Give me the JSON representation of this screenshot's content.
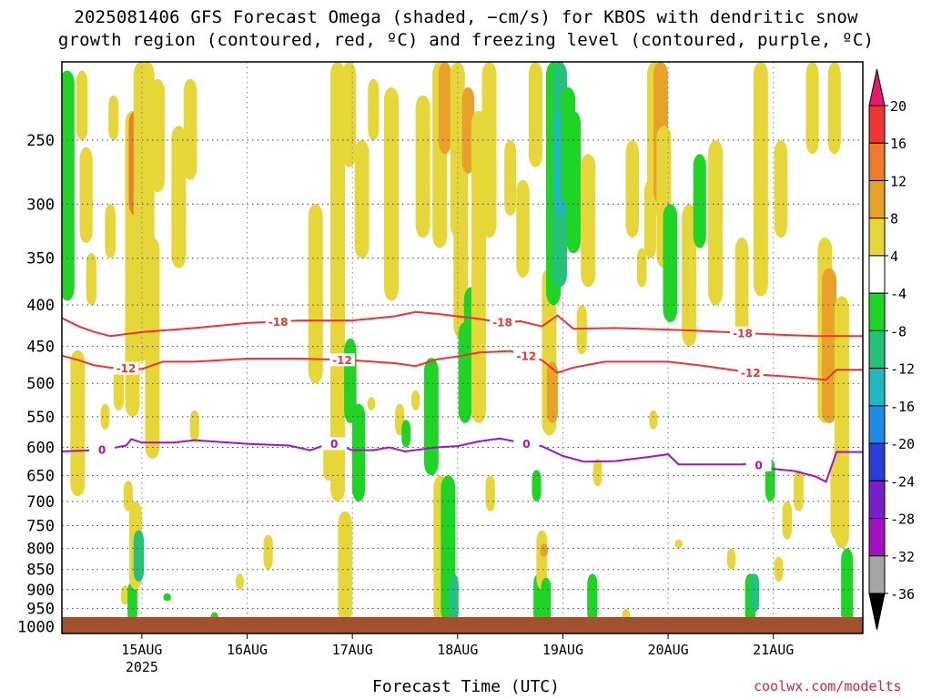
{
  "title_line1": "2025081406 GFS Forecast Omega (shaded, −cm/s) for KBOS with dendritic snow",
  "title_line2": "growth region (contoured, red, ºC) and freezing level (contoured, purple, ºC)",
  "credit": "coolwx.com/modelts",
  "chart_data": {
    "type": "heatmap",
    "title": "2025081406 GFS Forecast Omega (shaded, −cm/s) for KBOS with dendritic snow growth region (contoured, red, ºC) and freezing level (contoured, purple, ºC)",
    "xlabel": "Forecast Time (UTC)",
    "ylabel": "",
    "x_ticks": [
      {
        "label": "15AUG",
        "sublabel": "2025",
        "day": 15
      },
      {
        "label": "16AUG",
        "sublabel": "",
        "day": 16
      },
      {
        "label": "17AUG",
        "sublabel": "",
        "day": 17
      },
      {
        "label": "18AUG",
        "sublabel": "",
        "day": 18
      },
      {
        "label": "19AUG",
        "sublabel": "",
        "day": 19
      },
      {
        "label": "20AUG",
        "sublabel": "",
        "day": 20
      },
      {
        "label": "21AUG",
        "sublabel": "",
        "day": 21
      }
    ],
    "xlim": [
      14.24,
      21.85
    ],
    "y_ticks": [
      250,
      300,
      350,
      400,
      450,
      500,
      550,
      600,
      650,
      700,
      750,
      800,
      850,
      900,
      950,
      1000
    ],
    "y_unit": "hPa",
    "ylim": [
      1020,
      200
    ],
    "colorbar": {
      "labels": [
        "20",
        "16",
        "12",
        "8",
        "4",
        "-4",
        "-8",
        "-12",
        "-16",
        "-20",
        "-24",
        "-28",
        "-32",
        "-36"
      ],
      "bins": [
        {
          "from": 20,
          "to": null,
          "color": "#e8176f"
        },
        {
          "from": 16,
          "to": 20,
          "color": "#f03535"
        },
        {
          "from": 12,
          "to": 16,
          "color": "#ee7b2a"
        },
        {
          "from": 8,
          "to": 12,
          "color": "#e8a22a"
        },
        {
          "from": 4,
          "to": 8,
          "color": "#e6d638"
        },
        {
          "from": -4,
          "to": 4,
          "color": "#ffffff"
        },
        {
          "from": -8,
          "to": -4,
          "color": "#1ed424"
        },
        {
          "from": -12,
          "to": -8,
          "color": "#22c27a"
        },
        {
          "from": -16,
          "to": -12,
          "color": "#1fb7c0"
        },
        {
          "from": -20,
          "to": -16,
          "color": "#1f8be8"
        },
        {
          "from": -24,
          "to": -20,
          "color": "#2b3dd9"
        },
        {
          "from": -28,
          "to": -24,
          "color": "#7a1fd0"
        },
        {
          "from": -32,
          "to": -28,
          "color": "#a012c4"
        },
        {
          "from": -36,
          "to": -32,
          "color": "#a5a5a5"
        },
        {
          "from": null,
          "to": -36,
          "color": "#000000"
        }
      ]
    },
    "omega_regions": [
      {
        "day": 14.29,
        "pres": [
          205,
          395
        ],
        "value": -5
      },
      {
        "day": 14.39,
        "pres": [
          455,
          690
        ],
        "value": 5
      },
      {
        "day": 14.43,
        "pres": [
          205,
          250
        ],
        "value": 5
      },
      {
        "day": 14.47,
        "pres": [
          255,
          335
        ],
        "value": 6
      },
      {
        "day": 14.52,
        "pres": [
          345,
          400
        ],
        "value": 5
      },
      {
        "day": 14.65,
        "pres": [
          530,
          570
        ],
        "value": 5
      },
      {
        "day": 14.7,
        "pres": [
          300,
          350
        ],
        "value": 5
      },
      {
        "day": 14.73,
        "pres": [
          220,
          250
        ],
        "value": 5
      },
      {
        "day": 14.78,
        "pres": [
          470,
          540
        ],
        "value": 5
      },
      {
        "day": 14.84,
        "pres": [
          890,
          940
        ],
        "value": 5
      },
      {
        "day": 14.87,
        "pres": [
          660,
          720
        ],
        "value": 5
      },
      {
        "day": 14.91,
        "pres": [
          880,
          990
        ],
        "value": -6
      },
      {
        "day": 14.91,
        "pres": [
          230,
          550
        ],
        "value": 6
      },
      {
        "day": 14.94,
        "pres": [
          230,
          310
        ],
        "value": 14
      },
      {
        "day": 14.94,
        "pres": [
          700,
          900
        ],
        "value": 5
      },
      {
        "day": 14.97,
        "pres": [
          760,
          880
        ],
        "value": -12
      },
      {
        "day": 14.99,
        "pres": [
          200,
          470
        ],
        "value": 5
      },
      {
        "day": 15.05,
        "pres": [
          200,
          420
        ],
        "value": 5
      },
      {
        "day": 15.1,
        "pres": [
          330,
          620
        ],
        "value": 5
      },
      {
        "day": 15.15,
        "pres": [
          210,
          290
        ],
        "value": 5
      },
      {
        "day": 15.24,
        "pres": [
          910,
          930
        ],
        "value": -5
      },
      {
        "day": 15.35,
        "pres": [
          240,
          360
        ],
        "value": 5
      },
      {
        "day": 15.46,
        "pres": [
          210,
          280
        ],
        "value": 5
      },
      {
        "day": 15.5,
        "pres": [
          540,
          590
        ],
        "value": 5
      },
      {
        "day": 15.69,
        "pres": [
          960,
          995
        ],
        "value": -5
      },
      {
        "day": 15.93,
        "pres": [
          860,
          900
        ],
        "value": 5
      },
      {
        "day": 16.2,
        "pres": [
          770,
          850
        ],
        "value": 5
      },
      {
        "day": 16.65,
        "pres": [
          300,
          500
        ],
        "value": 5
      },
      {
        "day": 16.77,
        "pres": [
          590,
          660
        ],
        "value": 5
      },
      {
        "day": 16.86,
        "pres": [
          200,
          700
        ],
        "value": 5
      },
      {
        "day": 16.93,
        "pres": [
          720,
          990
        ],
        "value": 5
      },
      {
        "day": 16.97,
        "pres": [
          200,
          270
        ],
        "value": 5
      },
      {
        "day": 16.98,
        "pres": [
          440,
          560
        ],
        "value": -8
      },
      {
        "day": 17.06,
        "pres": [
          530,
          700
        ],
        "value": -6
      },
      {
        "day": 17.09,
        "pres": [
          250,
          350
        ],
        "value": 5
      },
      {
        "day": 17.18,
        "pres": [
          520,
          540
        ],
        "value": 5
      },
      {
        "day": 17.2,
        "pres": [
          210,
          250
        ],
        "value": 5
      },
      {
        "day": 17.37,
        "pres": [
          215,
          395
        ],
        "value": 5
      },
      {
        "day": 17.45,
        "pres": [
          530,
          580
        ],
        "value": 5
      },
      {
        "day": 17.51,
        "pres": [
          555,
          600
        ],
        "value": -5
      },
      {
        "day": 17.6,
        "pres": [
          510,
          540
        ],
        "value": 5
      },
      {
        "day": 17.67,
        "pres": [
          220,
          330
        ],
        "value": 5
      },
      {
        "day": 17.75,
        "pres": [
          465,
          650
        ],
        "value": -5
      },
      {
        "day": 17.83,
        "pres": [
          200,
          340
        ],
        "value": 6
      },
      {
        "day": 17.84,
        "pres": [
          650,
          990
        ],
        "value": 5
      },
      {
        "day": 17.88,
        "pres": [
          200,
          260
        ],
        "value": 10
      },
      {
        "day": 17.91,
        "pres": [
          650,
          990
        ],
        "value": -6
      },
      {
        "day": 17.96,
        "pres": [
          860,
          990
        ],
        "value": -10
      },
      {
        "day": 18.0,
        "pres": [
          200,
          330
        ],
        "value": 6
      },
      {
        "day": 18.03,
        "pres": [
          220,
          440
        ],
        "value": 5
      },
      {
        "day": 18.07,
        "pres": [
          420,
          560
        ],
        "value": -8
      },
      {
        "day": 18.1,
        "pres": [
          215,
          275
        ],
        "value": 9
      },
      {
        "day": 18.13,
        "pres": [
          380,
          540
        ],
        "value": -6
      },
      {
        "day": 18.2,
        "pres": [
          230,
          560
        ],
        "value": 5
      },
      {
        "day": 18.3,
        "pres": [
          200,
          330
        ],
        "value": 5
      },
      {
        "day": 18.31,
        "pres": [
          650,
          720
        ],
        "value": 5
      },
      {
        "day": 18.5,
        "pres": [
          250,
          310
        ],
        "value": 5
      },
      {
        "day": 18.62,
        "pres": [
          280,
          370
        ],
        "value": 5
      },
      {
        "day": 18.74,
        "pres": [
          200,
          270
        ],
        "value": 5
      },
      {
        "day": 18.75,
        "pres": [
          640,
          700
        ],
        "value": -6
      },
      {
        "day": 18.77,
        "pres": [
          860,
          995
        ],
        "value": -6
      },
      {
        "day": 18.8,
        "pres": [
          760,
          900
        ],
        "value": 5
      },
      {
        "day": 18.82,
        "pres": [
          790,
          820
        ],
        "value": 10
      },
      {
        "day": 18.84,
        "pres": [
          870,
          990
        ],
        "value": -8
      },
      {
        "day": 18.87,
        "pres": [
          360,
          580
        ],
        "value": 5
      },
      {
        "day": 18.9,
        "pres": [
          470,
          560
        ],
        "value": 9
      },
      {
        "day": 18.91,
        "pres": [
          200,
          400
        ],
        "value": -6
      },
      {
        "day": 18.97,
        "pres": [
          200,
          380
        ],
        "value": -9
      },
      {
        "day": 18.99,
        "pres": [
          230,
          310
        ],
        "value": -14
      },
      {
        "day": 19.05,
        "pres": [
          215,
          300
        ],
        "value": -6
      },
      {
        "day": 19.1,
        "pres": [
          230,
          345
        ],
        "value": -6
      },
      {
        "day": 19.18,
        "pres": [
          400,
          460
        ],
        "value": 5
      },
      {
        "day": 19.24,
        "pres": [
          260,
          380
        ],
        "value": 5
      },
      {
        "day": 19.28,
        "pres": [
          860,
          990
        ],
        "value": -5
      },
      {
        "day": 19.33,
        "pres": [
          620,
          670
        ],
        "value": 5
      },
      {
        "day": 19.6,
        "pres": [
          950,
          995
        ],
        "value": 5
      },
      {
        "day": 19.66,
        "pres": [
          250,
          330
        ],
        "value": 5
      },
      {
        "day": 19.75,
        "pres": [
          340,
          380
        ],
        "value": 5
      },
      {
        "day": 19.83,
        "pres": [
          280,
          350
        ],
        "value": 5
      },
      {
        "day": 19.86,
        "pres": [
          540,
          570
        ],
        "value": 5
      },
      {
        "day": 19.87,
        "pres": [
          200,
          310
        ],
        "value": 6
      },
      {
        "day": 19.93,
        "pres": [
          200,
          300
        ],
        "value": 10
      },
      {
        "day": 19.96,
        "pres": [
          240,
          360
        ],
        "value": 5
      },
      {
        "day": 20.02,
        "pres": [
          300,
          420
        ],
        "value": -5
      },
      {
        "day": 20.1,
        "pres": [
          780,
          800
        ],
        "value": 5
      },
      {
        "day": 20.2,
        "pres": [
          300,
          450
        ],
        "value": 5
      },
      {
        "day": 20.3,
        "pres": [
          260,
          340
        ],
        "value": -5
      },
      {
        "day": 20.45,
        "pres": [
          250,
          400
        ],
        "value": 5
      },
      {
        "day": 20.6,
        "pres": [
          800,
          850
        ],
        "value": 5
      },
      {
        "day": 20.7,
        "pres": [
          330,
          440
        ],
        "value": 5
      },
      {
        "day": 20.78,
        "pres": [
          860,
          995
        ],
        "value": -6
      },
      {
        "day": 20.82,
        "pres": [
          860,
          960
        ],
        "value": -9
      },
      {
        "day": 20.88,
        "pres": [
          200,
          390
        ],
        "value": 5
      },
      {
        "day": 20.97,
        "pres": [
          620,
          700
        ],
        "value": -6
      },
      {
        "day": 21.05,
        "pres": [
          820,
          880
        ],
        "value": 5
      },
      {
        "day": 21.07,
        "pres": [
          250,
          330
        ],
        "value": 5
      },
      {
        "day": 21.13,
        "pres": [
          700,
          780
        ],
        "value": 5
      },
      {
        "day": 21.24,
        "pres": [
          640,
          720
        ],
        "value": 5
      },
      {
        "day": 21.37,
        "pres": [
          200,
          260
        ],
        "value": 5
      },
      {
        "day": 21.49,
        "pres": [
          330,
          560
        ],
        "value": 5
      },
      {
        "day": 21.53,
        "pres": [
          360,
          560
        ],
        "value": 10
      },
      {
        "day": 21.58,
        "pres": [
          200,
          260
        ],
        "value": 5
      },
      {
        "day": 21.6,
        "pres": [
          620,
          780
        ],
        "value": 5
      },
      {
        "day": 21.65,
        "pres": [
          390,
          800
        ],
        "value": 5
      },
      {
        "day": 21.7,
        "pres": [
          800,
          995
        ],
        "value": -6
      }
    ],
    "contours": {
      "dendritic": [
        {
          "label": "-18",
          "color": "#ee3333",
          "x": [
            14.24,
            14.4,
            14.55,
            14.7,
            15.0,
            15.5,
            16.0,
            16.5,
            17.0,
            17.4,
            17.6,
            17.8,
            18.0,
            18.2,
            18.4,
            18.6,
            18.8,
            18.95,
            19.1,
            19.5,
            20.0,
            20.4,
            20.7,
            21.0,
            21.4,
            21.85
          ],
          "y": [
            415,
            425,
            432,
            437,
            432,
            427,
            421,
            418,
            418,
            413,
            408,
            410,
            413,
            416,
            420,
            419,
            425,
            412,
            428,
            427,
            429,
            431,
            433,
            435,
            437,
            437
          ]
        },
        {
          "label": "-12",
          "color": "#ee3333",
          "x": [
            14.24,
            14.4,
            14.55,
            14.7,
            15.0,
            15.2,
            15.5,
            16.0,
            16.5,
            17.0,
            17.4,
            17.6,
            17.8,
            18.0,
            18.2,
            18.5,
            18.8,
            18.95,
            19.1,
            19.4,
            19.7,
            20.0,
            20.3,
            20.6,
            20.9,
            21.2,
            21.5,
            21.6,
            21.85
          ],
          "y": [
            462,
            468,
            475,
            478,
            480,
            470,
            470,
            466,
            466,
            468,
            472,
            476,
            467,
            463,
            458,
            456,
            468,
            485,
            478,
            470,
            470,
            470,
            475,
            481,
            488,
            491,
            495,
            481,
            481
          ]
        }
      ],
      "freezing": [
        {
          "label": "0",
          "color": "#a313c7",
          "x": [
            14.24,
            14.6,
            14.85,
            14.9,
            15.0,
            15.3,
            15.5,
            16.0,
            16.4,
            16.6,
            16.8,
            17.0,
            17.2,
            17.35,
            17.5,
            17.8,
            18.0,
            18.2,
            18.4,
            18.6,
            18.8,
            19.0,
            19.2,
            19.5,
            19.8,
            20.0,
            20.1,
            20.4,
            20.7,
            20.8,
            21.0,
            21.2,
            21.4,
            21.5,
            21.6,
            21.85
          ],
          "y": [
            607,
            605,
            597,
            586,
            592,
            592,
            588,
            594,
            597,
            605,
            592,
            605,
            605,
            600,
            607,
            600,
            598,
            590,
            585,
            592,
            598,
            615,
            625,
            624,
            617,
            612,
            630,
            630,
            630,
            628,
            638,
            642,
            652,
            662,
            608,
            608
          ]
        }
      ]
    }
  }
}
